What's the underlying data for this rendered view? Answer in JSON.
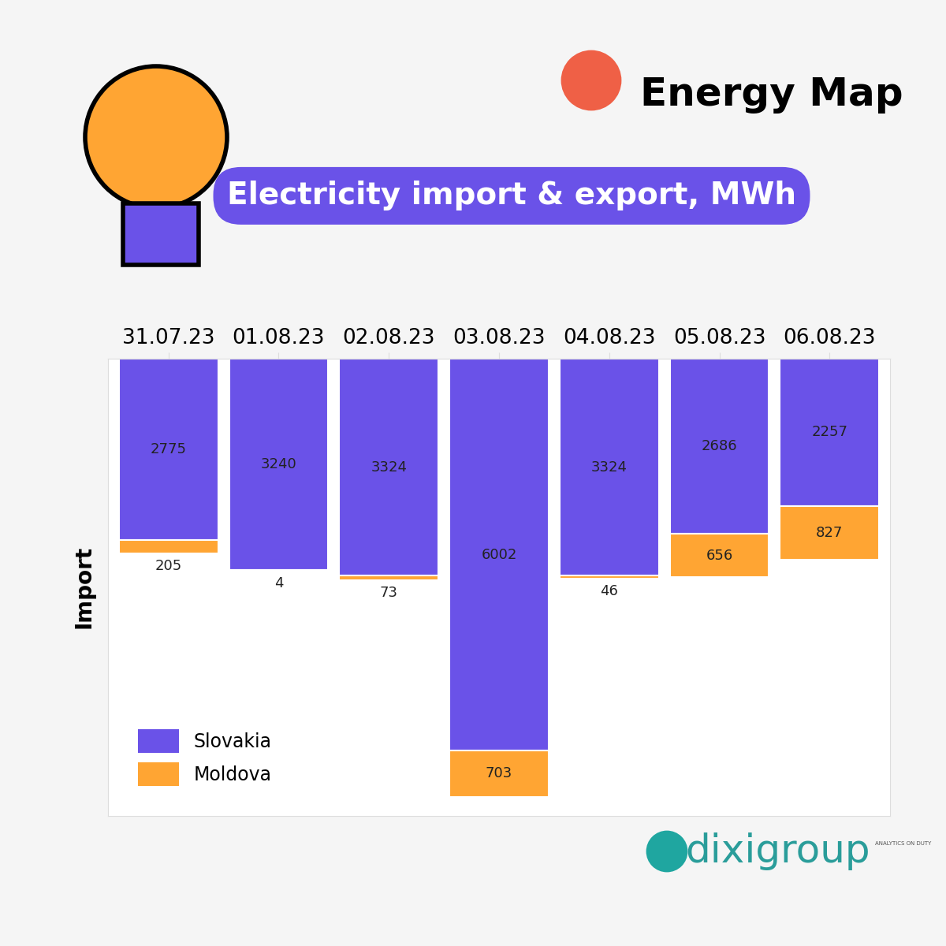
{
  "brand": "Energy Map",
  "source": "dixigroup",
  "source_tagline": "ANALYTICS ON DUTY",
  "chart_data": {
    "type": "bar",
    "title": "Electricity import & export, MWh",
    "y_label": "Import",
    "categories": [
      "31.07.23",
      "01.08.23",
      "02.08.23",
      "03.08.23",
      "04.08.23",
      "05.08.23",
      "06.08.23"
    ],
    "series": [
      {
        "name": "Slovakia",
        "color": "#6a52e8",
        "values": [
          2775,
          3240,
          3324,
          6002,
          3324,
          2686,
          2257
        ]
      },
      {
        "name": "Moldova",
        "color": "#ffa533",
        "values": [
          205,
          4,
          73,
          703,
          46,
          656,
          827
        ]
      }
    ],
    "stacked": true,
    "data_labels": true,
    "tick_labels": "x",
    "legend": "lower left",
    "ylim": [
      7000,
      0
    ],
    "yticks": []
  }
}
